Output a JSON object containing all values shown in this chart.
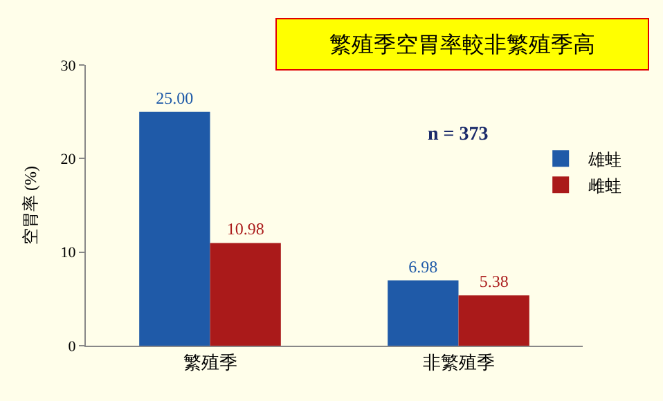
{
  "chart_data": {
    "type": "bar",
    "title": "繁殖季空胃率較非繁殖季高",
    "ylabel": "空胃率 (%)",
    "annotations": [
      "n = 373"
    ],
    "categories": [
      "繁殖季",
      "非繁殖季"
    ],
    "series": [
      {
        "name": "雄蛙",
        "color": "#1f5aa8",
        "values": [
          25.0,
          6.98
        ],
        "value_labels": [
          "25.00",
          "6.98"
        ]
      },
      {
        "name": "雌蛙",
        "color": "#aa1a1a",
        "values": [
          10.98,
          5.38
        ],
        "value_labels": [
          "10.98",
          "5.38"
        ]
      }
    ],
    "ylim": [
      0,
      30
    ],
    "yticks": [
      0,
      10,
      20,
      30
    ],
    "legend": "right"
  }
}
